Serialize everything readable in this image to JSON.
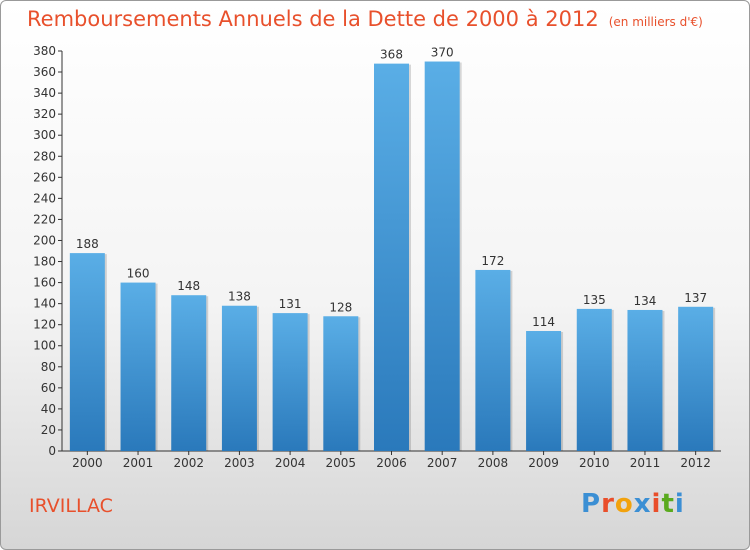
{
  "title": "Remboursements Annuels de la Dette de 2000 à 2012",
  "unit": "(en milliers d'€)",
  "commune": "IRVILLAC",
  "logo": {
    "text": "Proxiti",
    "letter_colors": [
      "#3b8fd4",
      "#e94e2a",
      "#f2a20d",
      "#3b8fd4",
      "#e94e2a",
      "#5aaa1e",
      "#3b8fd4"
    ]
  },
  "colors": {
    "bar_top": "#5aaee6",
    "bar_bottom": "#2a79bb",
    "title": "#e8502c"
  },
  "chart_data": {
    "type": "bar",
    "categories": [
      "2000",
      "2001",
      "2002",
      "2003",
      "2004",
      "2005",
      "2006",
      "2007",
      "2008",
      "2009",
      "2010",
      "2011",
      "2012"
    ],
    "values": [
      188,
      160,
      148,
      138,
      131,
      128,
      368,
      370,
      172,
      114,
      135,
      134,
      137
    ],
    "title": "Remboursements Annuels de la Dette de 2000 à 2012",
    "ylim": [
      0,
      380
    ],
    "ytick_step": 20,
    "grid": false
  }
}
